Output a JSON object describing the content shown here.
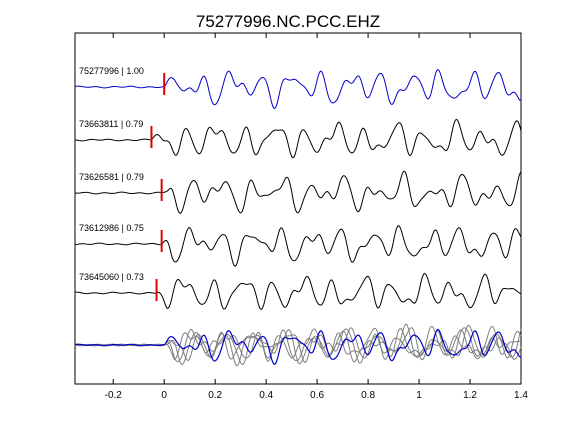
{
  "chart_data": {
    "type": "line",
    "title": "75277996.NC.PCC.EHZ",
    "xlabel": "",
    "ylabel": "",
    "xlim": [
      -0.35,
      1.4
    ],
    "xticks": [
      -0.2,
      0,
      0.2,
      0.4,
      0.6,
      0.8,
      1,
      1.2,
      1.4
    ],
    "xtick_labels": [
      "-0.2",
      "0",
      "0.2",
      "0.4",
      "0.6",
      "0.8",
      "1",
      "1.2",
      "1.4"
    ],
    "grid": false,
    "colors": {
      "reference": "#0000cc",
      "match": "#000000",
      "overlay_match": "#7f7f7f",
      "pick": "#e00000"
    },
    "traces": [
      {
        "id": "75277996",
        "cc": "1.00",
        "label": "75277996 | 1.00",
        "pick_time": 0.0,
        "reference": true
      },
      {
        "id": "73663811",
        "cc": "0.79",
        "label": "73663811 | 0.79",
        "pick_time": -0.05,
        "reference": false
      },
      {
        "id": "73626581",
        "cc": "0.79",
        "label": "73626581 | 0.79",
        "pick_time": -0.01,
        "reference": false
      },
      {
        "id": "73612986",
        "cc": "0.75",
        "label": "73612986 | 0.75",
        "pick_time": -0.01,
        "reference": false
      },
      {
        "id": "73645060",
        "cc": "0.73",
        "label": "73645060 | 0.73",
        "pick_time": -0.03,
        "reference": false
      }
    ],
    "overlay": {
      "description_visible": false,
      "traces_overlaid": 5
    }
  }
}
